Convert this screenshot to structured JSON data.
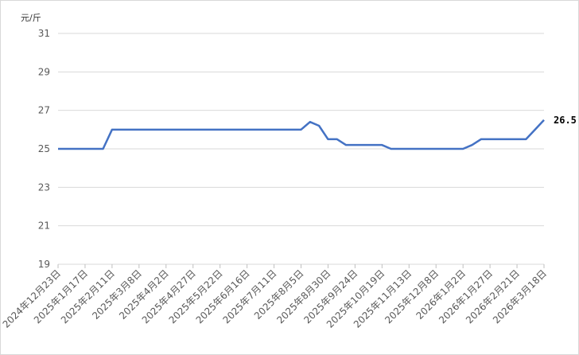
{
  "chart_data": {
    "type": "line",
    "y_unit": "元/斤",
    "categories": [
      "2024年12月23日",
      null,
      null,
      "2025年1月17日",
      null,
      null,
      "2025年2月11日",
      null,
      null,
      "2025年3月8日",
      null,
      null,
      "2025年4月2日",
      null,
      null,
      "2025年4月27日",
      null,
      null,
      "2025年5月22日",
      null,
      null,
      "2025年6月16日",
      null,
      null,
      "2025年7月11日",
      null,
      null,
      "2025年8月5日",
      null,
      null,
      "2025年8月30日",
      null,
      null,
      "2025年9月24日",
      null,
      null,
      "2025年10月19日",
      null,
      null,
      "2025年11月13日",
      null,
      null,
      "2025年12月8日",
      null,
      null,
      "2026年1月2日",
      null,
      null,
      "2026年1月27日",
      null,
      null,
      "2026年2月21日",
      null,
      null,
      "2026年3月18日"
    ],
    "values": [
      25,
      25,
      25,
      25,
      25,
      25,
      26,
      26,
      26,
      26,
      26,
      26,
      26,
      26,
      26,
      26,
      26,
      26,
      26,
      26,
      26,
      26,
      26,
      26,
      26,
      26,
      26,
      26,
      26.4,
      26.2,
      25.5,
      25.5,
      25.2,
      25.2,
      25.2,
      25.2,
      25.2,
      25,
      25,
      25,
      25,
      25,
      25,
      25,
      25,
      25,
      25.2,
      25.5,
      25.5,
      25.5,
      25.5,
      25.5,
      25.5,
      26,
      26.5
    ],
    "color": "#4472c4",
    "ylim": [
      19,
      31
    ],
    "yticks": [
      19,
      21,
      23,
      25,
      27,
      29,
      31
    ],
    "grid": true
  }
}
